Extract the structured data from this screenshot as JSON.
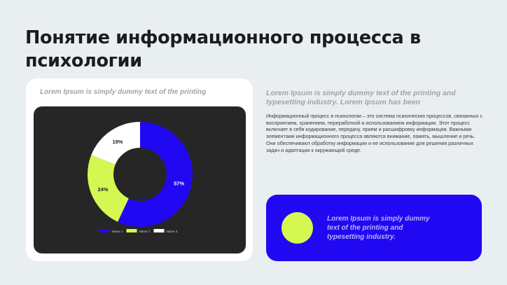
{
  "slide": {
    "title": "Понятие информационного процесса в психологии"
  },
  "left_card": {
    "caption": "Lorem Ipsum is simply dummy text of the printing"
  },
  "right_section": {
    "heading": "Lorem Ipsum is simply dummy text of the printing and typesetting industry. Lorem Ipsum has been",
    "body": "Информационный процесс в психологии – это система психических процессов, связанных с восприятием, хранением, переработкой и использованием информации. Этот процесс включает в себя кодирование, передачу, прием и расшифровку информации. Важными элементами информационного процесса являются внимание, память, мышление и речь. Они обеспечивают обработку информации и ее использование для решения различных задач и адаптации к окружающей среде."
  },
  "blue_card": {
    "text": "Lorem Ipsum is simply dummy text of the printing and typesetting industry."
  },
  "colors": {
    "background": "#e9eef1",
    "chart_panel": "#262626",
    "blue": "#2108f2",
    "lime": "#d5f752",
    "white": "#ffffff"
  },
  "chart_data": {
    "type": "pie",
    "style": "donut",
    "categories": [
      "Name 1",
      "Name 2",
      "Name 3"
    ],
    "values": [
      57,
      24,
      19
    ],
    "labels": [
      "57%",
      "24%",
      "19%"
    ],
    "colors": [
      "#2108f2",
      "#d5f752",
      "#ffffff"
    ],
    "label_colors": [
      "#ffffff",
      "#1c1c1c",
      "#1c1c1c"
    ],
    "legend_position": "bottom"
  }
}
